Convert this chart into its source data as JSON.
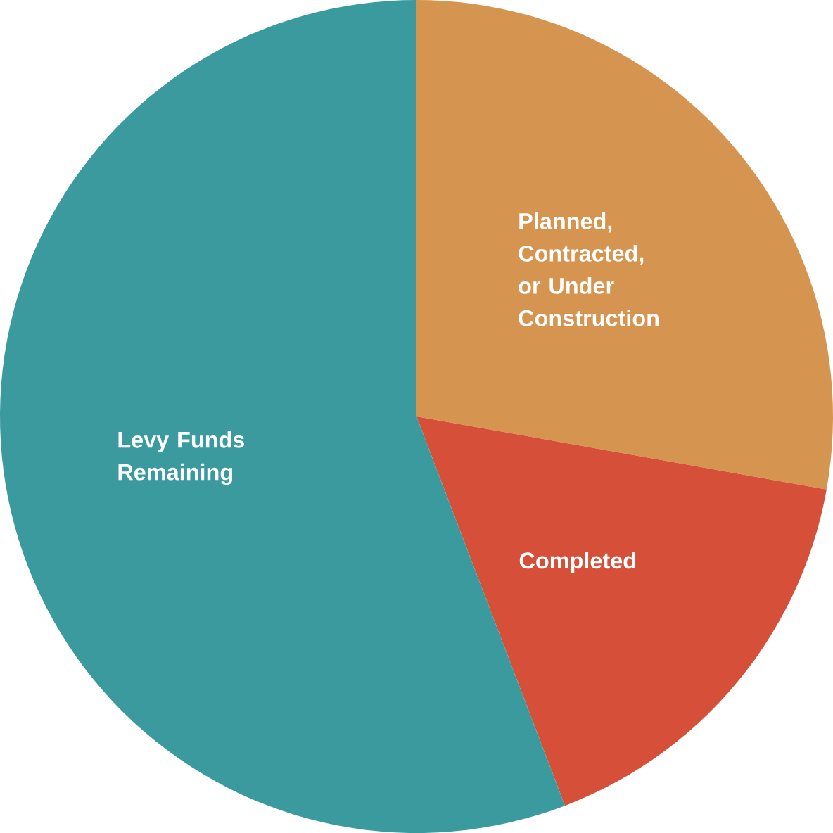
{
  "chart_data": {
    "type": "pie",
    "categories": [
      "Planned, Contracted, or Under Construction",
      "Completed",
      "Levy Funds Remaining"
    ],
    "values": [
      27.8,
      16.4,
      55.8
    ],
    "colors": [
      "#d59550",
      "#d64f38",
      "#3a9a9e"
    ]
  }
}
